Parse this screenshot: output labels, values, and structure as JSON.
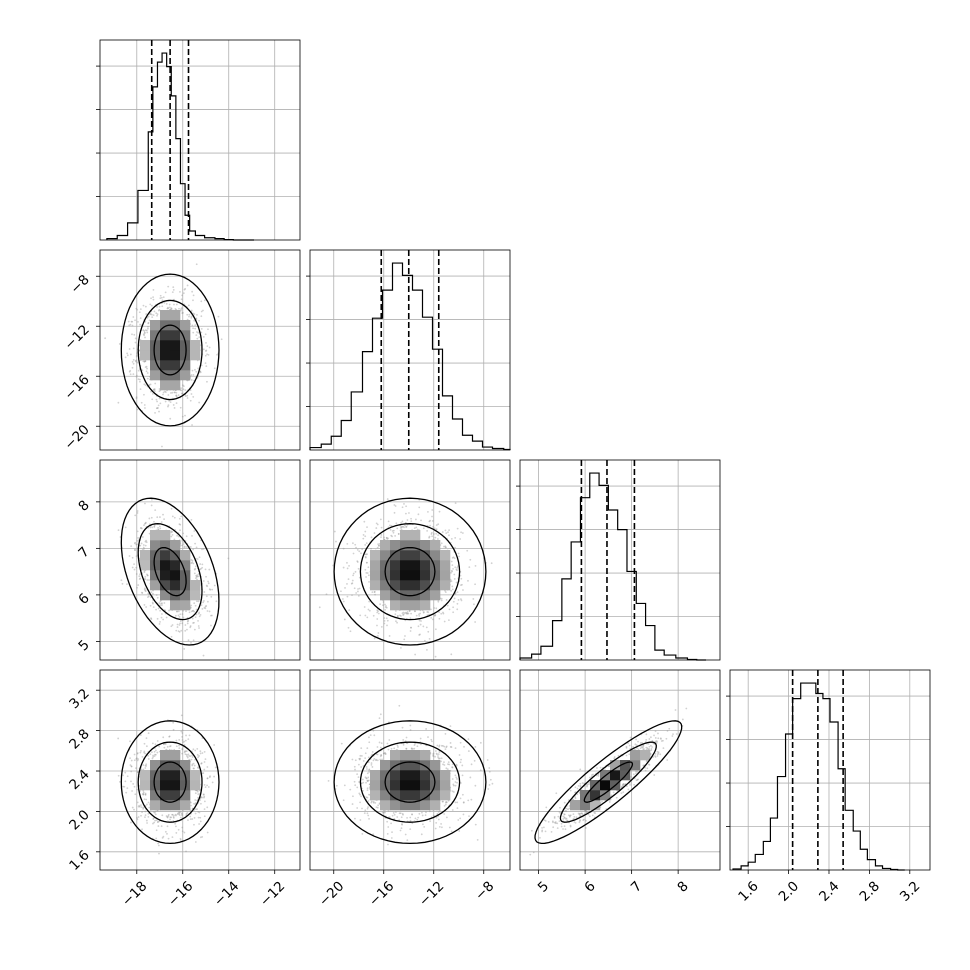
{
  "chart_data": {
    "type": "corner",
    "grid": true,
    "parameters": [
      {
        "ticks": [
          -18,
          -16,
          -14,
          -12
        ],
        "tick_labels": [
          "−18",
          "−16",
          "−14",
          "−12"
        ],
        "range": [
          -19.6,
          -10.9
        ]
      },
      {
        "ticks": [
          -20,
          -16,
          -12,
          -8
        ],
        "tick_labels": [
          "−20",
          "−16",
          "−12",
          "−8"
        ],
        "range": [
          -21.9,
          -5.9
        ]
      },
      {
        "ticks": [
          5,
          6,
          7,
          8
        ],
        "tick_labels": [
          "5",
          "6",
          "7",
          "8"
        ],
        "range": [
          4.6,
          8.9
        ]
      },
      {
        "ticks": [
          1.6,
          2.0,
          2.4,
          2.8,
          3.2
        ],
        "tick_labels": [
          "1.6",
          "2.0",
          "2.4",
          "2.8",
          "3.2"
        ],
        "range": [
          1.42,
          3.4
        ]
      }
    ],
    "marginals": [
      {
        "quantiles": [
          -17.35,
          -16.55,
          -15.75
        ],
        "bin_edges": [
          -19.3,
          -18.85,
          -18.4,
          -17.95,
          -17.5,
          -17.3,
          -17.1,
          -16.9,
          -16.7,
          -16.5,
          -16.3,
          -16.1,
          -15.9,
          -15.7,
          -15.45,
          -15.05,
          -14.6,
          -14.2,
          -13.8,
          -13.4,
          -12.9
        ],
        "counts": [
          3,
          10,
          38,
          110,
          240,
          340,
          395,
          415,
          385,
          320,
          225,
          125,
          55,
          20,
          10,
          5,
          3,
          1,
          0,
          0
        ]
      },
      {
        "quantiles": [
          -16.2,
          -14.0,
          -11.6
        ],
        "bin_edges": [
          -21.9,
          -21.0,
          -20.2,
          -19.4,
          -18.6,
          -17.7,
          -16.9,
          -16.1,
          -15.3,
          -14.5,
          -13.7,
          -12.9,
          -12.1,
          -11.3,
          -10.5,
          -9.7,
          -8.9,
          -8.1,
          -7.3,
          -6.4,
          -5.9
        ],
        "counts": [
          5,
          12,
          28,
          60,
          118,
          200,
          268,
          325,
          380,
          355,
          325,
          270,
          205,
          110,
          63,
          30,
          18,
          6,
          3,
          1
        ]
      },
      {
        "quantiles": [
          5.92,
          6.47,
          7.06
        ],
        "bin_edges": [
          4.6,
          4.85,
          5.05,
          5.3,
          5.5,
          5.7,
          5.9,
          6.1,
          6.3,
          6.5,
          6.7,
          6.9,
          7.1,
          7.3,
          7.5,
          7.7,
          7.95,
          8.2,
          8.4,
          8.6
        ],
        "counts": [
          4,
          12,
          28,
          80,
          165,
          240,
          330,
          380,
          355,
          305,
          265,
          180,
          115,
          70,
          20,
          10,
          4,
          1,
          0
        ]
      },
      {
        "quantiles": [
          2.04,
          2.29,
          2.54
        ],
        "bin_edges": [
          1.45,
          1.53,
          1.6,
          1.67,
          1.75,
          1.82,
          1.89,
          1.97,
          2.04,
          2.12,
          2.19,
          2.27,
          2.34,
          2.41,
          2.49,
          2.56,
          2.64,
          2.71,
          2.78,
          2.86,
          2.93,
          3.01,
          3.08,
          3.15
        ],
        "counts": [
          2,
          8,
          15,
          30,
          55,
          100,
          180,
          262,
          330,
          360,
          360,
          340,
          330,
          285,
          195,
          115,
          75,
          40,
          20,
          8,
          3,
          1,
          0
        ]
      }
    ],
    "joint": [
      {
        "x": 0,
        "y": 1,
        "mean": [
          -16.55,
          -13.9
        ],
        "sd": [
          0.7,
          2.0
        ],
        "rho": 0.0
      },
      {
        "x": 0,
        "y": 2,
        "mean": [
          -16.55,
          6.5
        ],
        "sd": [
          0.7,
          0.52
        ],
        "rho": -0.4
      },
      {
        "x": 1,
        "y": 2,
        "mean": [
          -13.9,
          6.5
        ],
        "sd": [
          2.0,
          0.52
        ],
        "rho": 0.0
      },
      {
        "x": 0,
        "y": 3,
        "mean": [
          -16.55,
          2.29
        ],
        "sd": [
          0.7,
          0.2
        ],
        "rho": 0.0
      },
      {
        "x": 1,
        "y": 3,
        "mean": [
          -13.9,
          2.29
        ],
        "sd": [
          2.0,
          0.2
        ],
        "rho": 0.0
      },
      {
        "x": 2,
        "y": 3,
        "mean": [
          6.5,
          2.29
        ],
        "sd": [
          0.52,
          0.2
        ],
        "rho": 0.9
      }
    ]
  }
}
